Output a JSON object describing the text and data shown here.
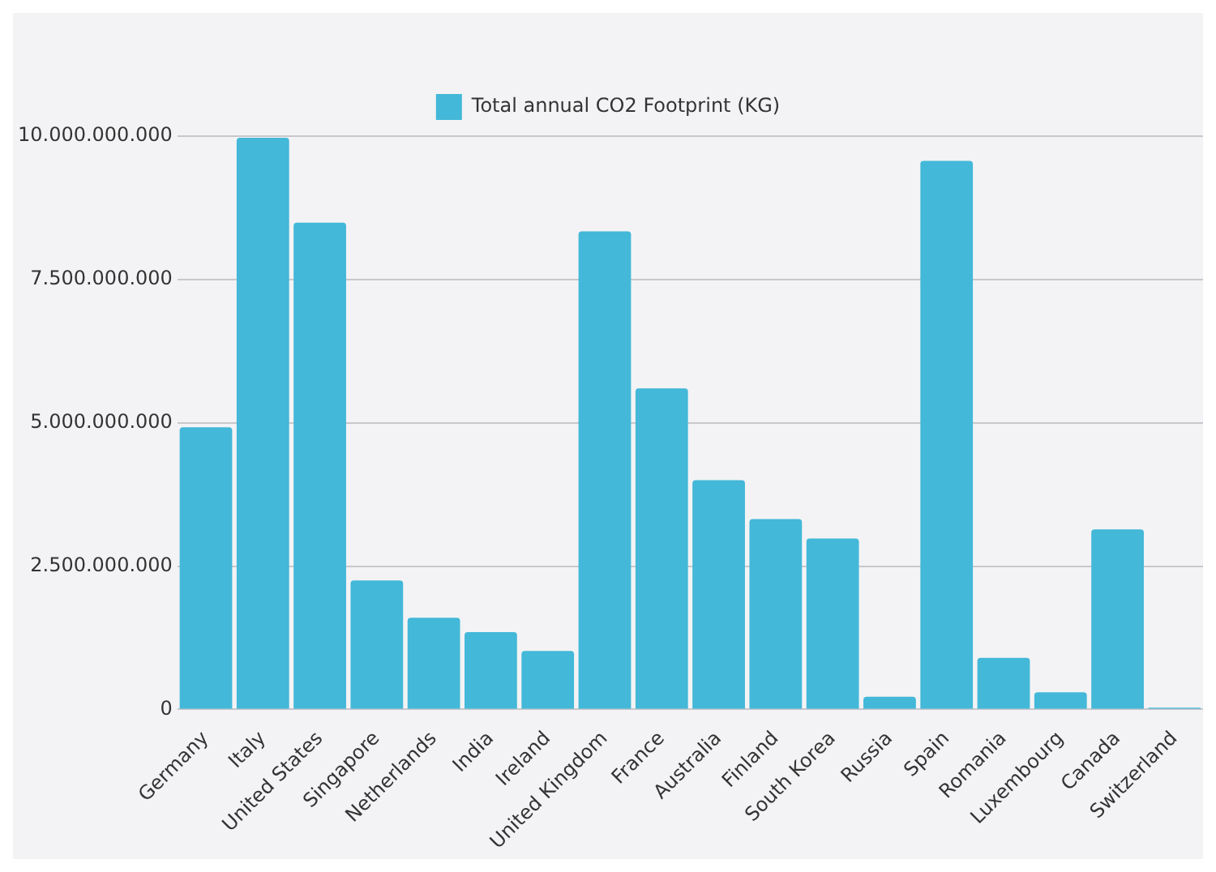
{
  "chart_data": {
    "type": "bar",
    "categories": [
      "Germany",
      "Italy",
      "United States",
      "Singapore",
      "Netherlands",
      "India",
      "Ireland",
      "United Kingdom",
      "France",
      "Australia",
      "Finland",
      "South Korea",
      "Russia",
      "Spain",
      "Romania",
      "Luxembourg",
      "Canada",
      "Switzerland"
    ],
    "series": [
      {
        "name": "Total annual CO2 Footprint (KG)",
        "color": "#43b8d8",
        "values": [
          4920000000,
          9970000000,
          8490000000,
          2250000000,
          1600000000,
          1350000000,
          1020000000,
          8340000000,
          5600000000,
          4000000000,
          3320000000,
          2980000000,
          220000000,
          9570000000,
          900000000,
          300000000,
          3140000000,
          30000000
        ]
      }
    ],
    "ylim": [
      0,
      10000000000
    ],
    "yticks": [
      {
        "value": 0,
        "label": "0"
      },
      {
        "value": 2500000000,
        "label": "2.500.000.000"
      },
      {
        "value": 5000000000,
        "label": "5.000.000.000"
      },
      {
        "value": 7500000000,
        "label": "7.500.000.000"
      },
      {
        "value": 10000000000,
        "label": "10.000.000.000"
      }
    ],
    "grid": "y",
    "legend": "top"
  }
}
